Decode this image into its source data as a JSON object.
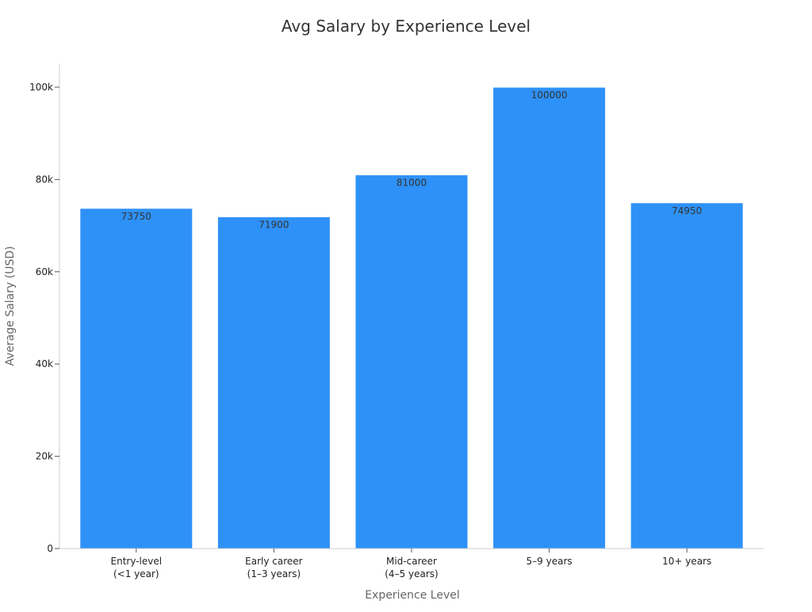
{
  "chart_data": {
    "type": "bar",
    "title": "Avg Salary by Experience Level",
    "xlabel": "Experience Level",
    "ylabel": "Average Salary (USD)",
    "categories": [
      [
        "Entry-level",
        "(<1 year)"
      ],
      [
        "Early career",
        "(1–3 years)"
      ],
      [
        "Mid-career",
        "(4–5 years)"
      ],
      [
        "5–9 years"
      ],
      [
        "10+ years"
      ]
    ],
    "values": [
      73750,
      71900,
      81000,
      100000,
      74950
    ],
    "data_labels": [
      "73750",
      "71900",
      "81000",
      "100000",
      "74950"
    ],
    "ylim": [
      0,
      105000
    ],
    "yticks": [
      0,
      20000,
      40000,
      60000,
      80000,
      100000
    ],
    "ytick_labels": [
      "0",
      "20k",
      "40k",
      "60k",
      "80k",
      "100k"
    ],
    "grid": false,
    "bar_color": "#2e91f7",
    "label_position": "inside-top"
  }
}
